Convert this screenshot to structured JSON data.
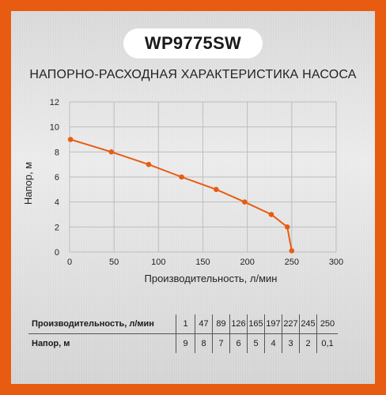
{
  "model": "WP9775SW",
  "chart_data": {
    "type": "line",
    "title": "НАПОРНО-РАСХОДНАЯ ХАРАКТЕРИСТИКА НАСОСА",
    "xlabel": "Производительность, л/мин",
    "ylabel": "Напор, м",
    "xlim": [
      0,
      300
    ],
    "ylim": [
      0,
      12
    ],
    "xticks": [
      0,
      50,
      100,
      150,
      200,
      250,
      300
    ],
    "yticks": [
      0,
      2,
      4,
      6,
      8,
      10,
      12
    ],
    "grid": true,
    "color": "#e85c12",
    "x": [
      1,
      47,
      89,
      126,
      165,
      197,
      227,
      245,
      250
    ],
    "y": [
      9,
      8,
      7,
      6,
      5,
      4,
      3,
      2,
      0.1
    ]
  },
  "table": {
    "rows": [
      {
        "label": "Производительность, л/мин",
        "values": [
          "1",
          "47",
          "89",
          "126",
          "165",
          "197",
          "227",
          "245",
          "250"
        ]
      },
      {
        "label": "Напор, м",
        "values": [
          "9",
          "8",
          "7",
          "6",
          "5",
          "4",
          "3",
          "2",
          "0,1"
        ]
      }
    ]
  }
}
